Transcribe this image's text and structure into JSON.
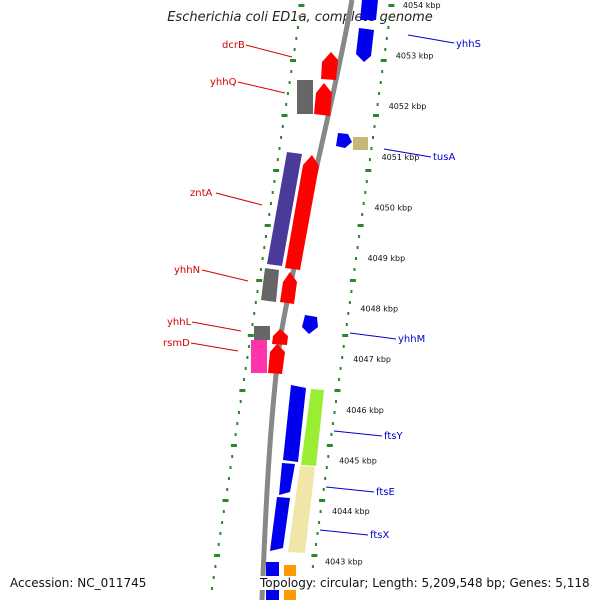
{
  "title": "Escherichia coli ED1a, complete genome",
  "footer": {
    "accession": "Accession: NC_011745",
    "topology": "Topology: circular; Length: 5,209,548 bp; Genes: 5,118"
  },
  "colors": {
    "backbone": "#888888",
    "tick_dots": "#2a8a2a",
    "left_label": "#d40000",
    "right_label": "#0000cc"
  },
  "scale_ticks": [
    {
      "label": "4054 kbp",
      "kbp": 4054
    },
    {
      "label": "4053 kbp",
      "kbp": 4053
    },
    {
      "label": "4052 kbp",
      "kbp": 4052
    },
    {
      "label": "4051 kbp",
      "kbp": 4051
    },
    {
      "label": "4050 kbp",
      "kbp": 4050
    },
    {
      "label": "4049 kbp",
      "kbp": 4049
    },
    {
      "label": "4048 kbp",
      "kbp": 4048
    },
    {
      "label": "4047 kbp",
      "kbp": 4047
    },
    {
      "label": "4046 kbp",
      "kbp": 4046
    },
    {
      "label": "4045 kbp",
      "kbp": 4045
    },
    {
      "label": "4044 kbp",
      "kbp": 4044
    },
    {
      "label": "4043 kbp",
      "kbp": 4043
    }
  ],
  "gene_labels": [
    {
      "name": "dcrB",
      "side": "left"
    },
    {
      "name": "yhhQ",
      "side": "left"
    },
    {
      "name": "zntA",
      "side": "left"
    },
    {
      "name": "yhhN",
      "side": "left"
    },
    {
      "name": "yhhL",
      "side": "left"
    },
    {
      "name": "rsmD",
      "side": "left"
    },
    {
      "name": "yhhS",
      "side": "right"
    },
    {
      "name": "tusA",
      "side": "right"
    },
    {
      "name": "yhhM",
      "side": "right"
    },
    {
      "name": "ftsY",
      "side": "right"
    },
    {
      "name": "ftsE",
      "side": "right"
    },
    {
      "name": "ftsX",
      "side": "right"
    }
  ]
}
